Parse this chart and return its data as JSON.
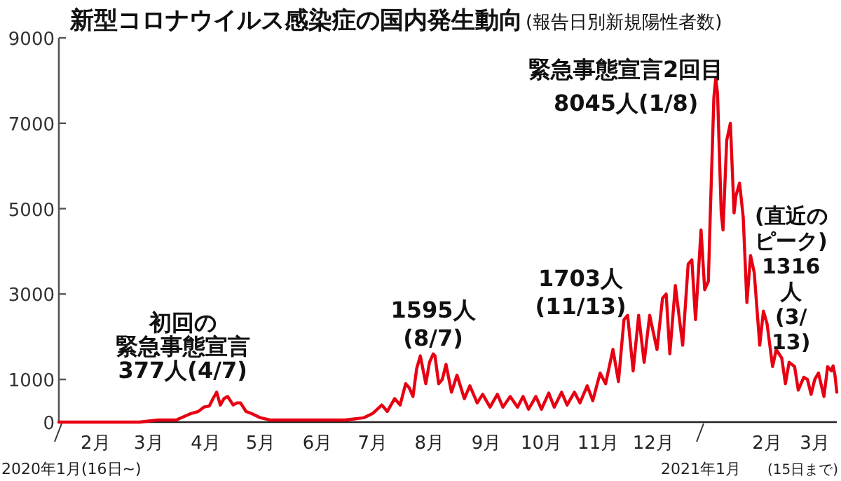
{
  "chart_data": {
    "type": "line",
    "title": "新型コロナウイルス感染症の国内発生動向",
    "subtitle": "(報告日別新規陽性者数)",
    "color": "#e60012",
    "x": [
      "2020-01-16",
      "2020-01-31",
      "2020-02-15",
      "2020-02-29",
      "2020-03-10",
      "2020-03-20",
      "2020-03-28",
      "2020-04-01",
      "2020-04-04",
      "2020-04-07",
      "2020-04-09",
      "2020-04-11",
      "2020-04-13",
      "2020-04-15",
      "2020-04-17",
      "2020-04-20",
      "2020-04-22",
      "2020-04-24",
      "2020-04-27",
      "2020-04-30",
      "2020-05-05",
      "2020-05-10",
      "2020-05-20",
      "2020-06-01",
      "2020-06-10",
      "2020-06-20",
      "2020-06-30",
      "2020-07-05",
      "2020-07-10",
      "2020-07-13",
      "2020-07-17",
      "2020-07-20",
      "2020-07-23",
      "2020-07-25",
      "2020-07-27",
      "2020-07-29",
      "2020-07-31",
      "2020-08-03",
      "2020-08-05",
      "2020-08-07",
      "2020-08-08",
      "2020-08-10",
      "2020-08-12",
      "2020-08-14",
      "2020-08-17",
      "2020-08-20",
      "2020-08-24",
      "2020-08-27",
      "2020-08-31",
      "2020-09-03",
      "2020-09-07",
      "2020-09-11",
      "2020-09-14",
      "2020-09-18",
      "2020-09-22",
      "2020-09-25",
      "2020-09-28",
      "2020-10-02",
      "2020-10-05",
      "2020-10-09",
      "2020-10-12",
      "2020-10-16",
      "2020-10-19",
      "2020-10-23",
      "2020-10-26",
      "2020-10-30",
      "2020-11-02",
      "2020-11-06",
      "2020-11-09",
      "2020-11-13",
      "2020-11-16",
      "2020-11-19",
      "2020-11-21",
      "2020-11-24",
      "2020-11-27",
      "2020-11-30",
      "2020-12-03",
      "2020-12-07",
      "2020-12-10",
      "2020-12-12",
      "2020-12-14",
      "2020-12-17",
      "2020-12-21",
      "2020-12-24",
      "2020-12-26",
      "2020-12-28",
      "2020-12-31",
      "2021-01-02",
      "2021-01-04",
      "2021-01-05",
      "2021-01-07",
      "2021-01-08",
      "2021-01-09",
      "2021-01-11",
      "2021-01-12",
      "2021-01-14",
      "2021-01-16",
      "2021-01-18",
      "2021-01-19",
      "2021-01-21",
      "2021-01-23",
      "2021-01-25",
      "2021-01-27",
      "2021-01-29",
      "2021-02-01",
      "2021-02-03",
      "2021-02-05",
      "2021-02-08",
      "2021-02-10",
      "2021-02-13",
      "2021-02-15",
      "2021-02-17",
      "2021-02-20",
      "2021-02-22",
      "2021-02-25",
      "2021-02-27",
      "2021-03-01",
      "2021-03-03",
      "2021-03-05",
      "2021-03-08",
      "2021-03-10",
      "2021-03-12",
      "2021-03-13",
      "2021-03-14",
      "2021-03-15"
    ],
    "values": [
      0,
      0,
      0,
      0,
      50,
      50,
      200,
      250,
      350,
      377,
      550,
      700,
      400,
      550,
      600,
      400,
      450,
      450,
      250,
      200,
      100,
      50,
      50,
      50,
      50,
      50,
      100,
      200,
      400,
      250,
      550,
      400,
      900,
      800,
      600,
      1250,
      1550,
      900,
      1400,
      1595,
      1550,
      900,
      1000,
      1350,
      700,
      1100,
      550,
      850,
      450,
      650,
      350,
      650,
      350,
      600,
      350,
      600,
      300,
      600,
      300,
      680,
      350,
      700,
      400,
      700,
      450,
      850,
      500,
      1150,
      900,
      1703,
      950,
      2400,
      2500,
      1200,
      2500,
      1400,
      2500,
      1700,
      2900,
      3000,
      1600,
      3200,
      1800,
      3700,
      3800,
      2400,
      4500,
      3100,
      3300,
      4800,
      7600,
      8045,
      7700,
      4900,
      4500,
      6600,
      7000,
      4900,
      5300,
      5600,
      4800,
      2800,
      3900,
      3500,
      1800,
      2600,
      2300,
      1300,
      1700,
      1500,
      900,
      1400,
      1300,
      750,
      1050,
      1000,
      650,
      1000,
      1150,
      600,
      1300,
      1200,
      1316,
      1100,
      700
    ],
    "xlim": [
      "2020-01-16",
      "2021-03-15"
    ],
    "xticks": [
      {
        "value": "2020-02-05",
        "label": "2月"
      },
      {
        "value": "2020-03-05",
        "label": "3月"
      },
      {
        "value": "2020-04-05",
        "label": "4月"
      },
      {
        "value": "2020-05-05",
        "label": "5月"
      },
      {
        "value": "2020-06-05",
        "label": "6月"
      },
      {
        "value": "2020-07-05",
        "label": "7月"
      },
      {
        "value": "2020-08-05",
        "label": "8月"
      },
      {
        "value": "2020-09-05",
        "label": "9月"
      },
      {
        "value": "2020-10-05",
        "label": "10月"
      },
      {
        "value": "2020-11-05",
        "label": "11月"
      },
      {
        "value": "2020-12-05",
        "label": "12月"
      },
      {
        "value": "2021-02-05",
        "label": "2月"
      },
      {
        "value": "2021-03-03",
        "label": "3月"
      }
    ],
    "ylim": [
      0,
      9000
    ],
    "yticks": [
      0,
      1000,
      3000,
      5000,
      7000,
      9000
    ],
    "annotations": [
      {
        "text": "初回の緊急事態宣言377人(4/7)",
        "x": "2020-04-07",
        "y": 377
      },
      {
        "text": "1595人(8/7)",
        "x": "2020-08-07",
        "y": 1595
      },
      {
        "text": "1703人(11/13)",
        "x": "2020-11-13",
        "y": 1703
      },
      {
        "text": "緊急事態宣言2回目8045人(1/8)",
        "x": "2021-01-08",
        "y": 8045
      },
      {
        "text": "(直近のピーク)1316人(3/13)",
        "x": "2021-03-13",
        "y": 1316
      },
      "2020年1月(16日~)",
      "2021年1月",
      "(15日まで)"
    ]
  }
}
